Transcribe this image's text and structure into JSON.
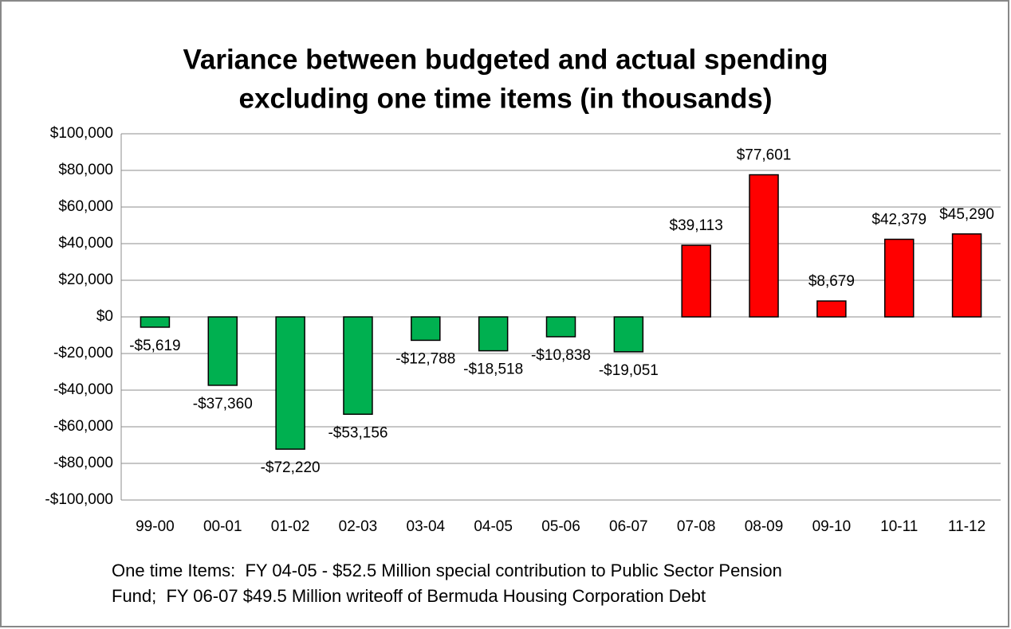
{
  "chart_data": {
    "type": "bar",
    "title": [
      "Variance between budgeted and actual spending",
      "excluding one time items (in thousands)"
    ],
    "categories": [
      "99-00",
      "00-01",
      "01-02",
      "02-03",
      "03-04",
      "04-05",
      "05-06",
      "06-07",
      "07-08",
      "08-09",
      "09-10",
      "10-11",
      "11-12"
    ],
    "values": [
      -5619,
      -37360,
      -72220,
      -53156,
      -12788,
      -18518,
      -10838,
      -19051,
      39113,
      77601,
      8679,
      42379,
      45290
    ],
    "value_labels": [
      "-$5,619",
      "-$37,360",
      "-$72,220",
      "-$53,156",
      "-$12,788",
      "-$18,518",
      "-$10,838",
      "-$19,051",
      "$39,113",
      "$77,601",
      "$8,679",
      "$42,379",
      "$45,290"
    ],
    "colors": [
      "#00b050",
      "#00b050",
      "#00b050",
      "#00b050",
      "#00b050",
      "#00b050",
      "#00b050",
      "#00b050",
      "#ff0000",
      "#ff0000",
      "#ff0000",
      "#ff0000",
      "#ff0000"
    ],
    "ylim": [
      -100000,
      100000
    ],
    "yticks": [
      {
        "value": -100000,
        "label": "-$100,000"
      },
      {
        "value": -80000,
        "label": "-$80,000"
      },
      {
        "value": -60000,
        "label": "-$60,000"
      },
      {
        "value": -40000,
        "label": "-$40,000"
      },
      {
        "value": -20000,
        "label": "-$20,000"
      },
      {
        "value": 0,
        "label": "$0"
      },
      {
        "value": 20000,
        "label": "$20,000"
      },
      {
        "value": 40000,
        "label": "$40,000"
      },
      {
        "value": 60000,
        "label": "$60,000"
      },
      {
        "value": 80000,
        "label": "$80,000"
      },
      {
        "value": 100000,
        "label": "$100,000"
      }
    ],
    "grid": true,
    "note": [
      "One time Items:  FY 04-05 - $52.5 Million special contribution to Public Sector Pension",
      "Fund;  FY 06-07 $49.5 Million writeoff of Bermuda Housing Corporation Debt"
    ]
  }
}
